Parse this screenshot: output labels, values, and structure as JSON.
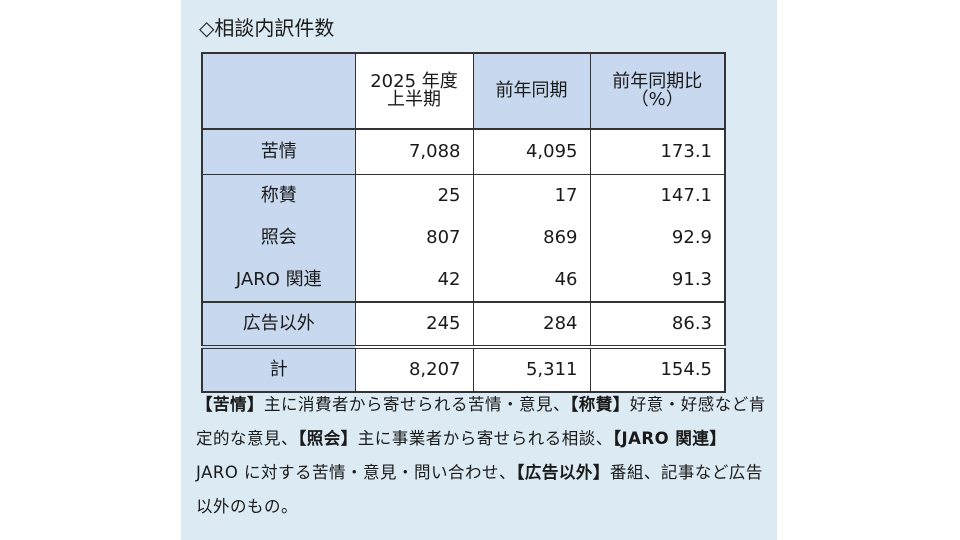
{
  "title": "◇相談内訳件数",
  "table": {
    "headers": {
      "blank": "",
      "current_line1": "2025 年度",
      "current_line2": "上半期",
      "previous": "前年同期",
      "ratio_line1": "前年同期比",
      "ratio_line2": "（%）"
    },
    "rows": [
      {
        "label": "苦情",
        "current": "7,088",
        "previous": "4,095",
        "ratio": "173.1"
      },
      {
        "label": "称賛",
        "current": "25",
        "previous": "17",
        "ratio": "147.1"
      },
      {
        "label": "照会",
        "current": "807",
        "previous": "869",
        "ratio": "92.9"
      },
      {
        "label": "JARO 関連",
        "current": "42",
        "previous": "46",
        "ratio": "91.3"
      },
      {
        "label": "広告以外",
        "current": "245",
        "previous": "284",
        "ratio": "86.3"
      },
      {
        "label": "計",
        "current": "8,207",
        "previous": "5,311",
        "ratio": "154.5"
      }
    ]
  },
  "notes": {
    "k1": "【苦情】",
    "t1": "主に消費者から寄せられる苦情・意見、",
    "k2": "【称賛】",
    "t2": "好意・好感など肯定的な意見、",
    "k3": "【照会】",
    "t3": "主に事業者から寄せられる相談、",
    "k4": "【JARO 関連】",
    "t4": "JARO に対する苦情・意見・問い合わせ、",
    "k5": "【広告以外】",
    "t5": "番組、記事など広告以外のもの。"
  },
  "colors": {
    "panel_background": "#dbeaf3",
    "label_cell": "#c7d8ef",
    "value_cell": "#ffffff"
  }
}
